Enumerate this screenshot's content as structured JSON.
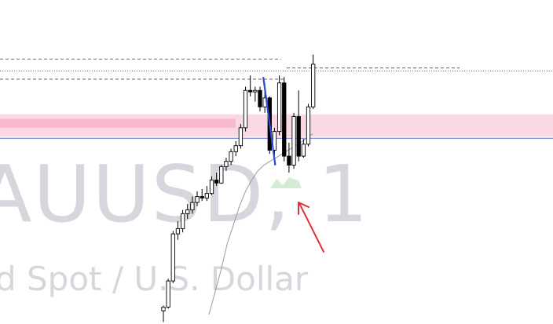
{
  "watermark": {
    "symbol": "AUUSD, 1",
    "description": "d Spot / U.S. Dollar"
  },
  "colors": {
    "background": "#ffffff",
    "watermark": "#d6d7dc",
    "candle_up_fill": "#ffffff",
    "candle_down_fill": "#000000",
    "candle_outline": "#000000",
    "zone_outer": "#fbd9e4",
    "zone_inner": "#f7b9cc",
    "horizontal_line": "#5b6fd6",
    "trend_line": "#2a4fd1",
    "moving_average": "#9a9a9a",
    "arrow": "#e0323c",
    "highlight": "#cfe8cf",
    "level_dashed": "#444444",
    "level_dotted": "#444444"
  },
  "chart_data": {
    "type": "candlestick",
    "title": "",
    "xlabel": "",
    "ylabel": "",
    "grid": false,
    "legend": "none",
    "candles": [
      {
        "o": 5,
        "h": 12,
        "l": -10,
        "c": 10
      },
      {
        "o": 10,
        "h": 48,
        "l": 8,
        "c": 45
      },
      {
        "o": 45,
        "h": 112,
        "l": 42,
        "c": 108
      },
      {
        "o": 108,
        "h": 125,
        "l": 100,
        "c": 115
      },
      {
        "o": 115,
        "h": 140,
        "l": 110,
        "c": 135
      },
      {
        "o": 135,
        "h": 148,
        "l": 128,
        "c": 140
      },
      {
        "o": 140,
        "h": 158,
        "l": 135,
        "c": 150
      },
      {
        "o": 150,
        "h": 165,
        "l": 145,
        "c": 158
      },
      {
        "o": 158,
        "h": 168,
        "l": 152,
        "c": 156
      },
      {
        "o": 156,
        "h": 172,
        "l": 152,
        "c": 162
      },
      {
        "o": 162,
        "h": 185,
        "l": 160,
        "c": 180
      },
      {
        "o": 180,
        "h": 190,
        "l": 172,
        "c": 176
      },
      {
        "o": 176,
        "h": 200,
        "l": 175,
        "c": 198
      },
      {
        "o": 198,
        "h": 210,
        "l": 192,
        "c": 205
      },
      {
        "o": 205,
        "h": 222,
        "l": 200,
        "c": 218
      },
      {
        "o": 218,
        "h": 232,
        "l": 212,
        "c": 226
      },
      {
        "o": 226,
        "h": 255,
        "l": 222,
        "c": 250
      },
      {
        "o": 250,
        "h": 305,
        "l": 245,
        "c": 300
      },
      {
        "o": 300,
        "h": 320,
        "l": 292,
        "c": 298
      },
      {
        "o": 298,
        "h": 305,
        "l": 285,
        "c": 300
      },
      {
        "o": 300,
        "h": 305,
        "l": 272,
        "c": 278
      },
      {
        "o": 278,
        "h": 310,
        "l": 270,
        "c": 290
      },
      {
        "o": 290,
        "h": 292,
        "l": 215,
        "c": 220
      },
      {
        "o": 220,
        "h": 250,
        "l": 200,
        "c": 245
      },
      {
        "o": 245,
        "h": 320,
        "l": 240,
        "c": 310
      },
      {
        "o": 310,
        "h": 318,
        "l": 205,
        "c": 212
      },
      {
        "o": 212,
        "h": 230,
        "l": 190,
        "c": 200
      },
      {
        "o": 200,
        "h": 270,
        "l": 195,
        "c": 265
      },
      {
        "o": 265,
        "h": 300,
        "l": 205,
        "c": 212
      },
      {
        "o": 212,
        "h": 235,
        "l": 210,
        "c": 228
      },
      {
        "o": 228,
        "h": 282,
        "l": 225,
        "c": 278
      },
      {
        "o": 278,
        "h": 348,
        "l": 275,
        "c": 335
      }
    ],
    "ylim": [
      -20,
      400
    ],
    "zone": {
      "low": 238,
      "high": 268,
      "inner_low": 250,
      "inner_high": 262
    },
    "horizontal_level": 236,
    "dashed_levels": [
      342,
      330,
      315
    ],
    "dotted_level": 326,
    "moving_average": [
      0,
      30,
      60,
      95,
      120,
      145,
      165,
      180,
      192,
      200,
      205,
      210,
      215,
      220,
      225,
      230,
      236,
      242
    ],
    "trend_line": {
      "from": {
        "i": 21,
        "v": 318
      },
      "to": {
        "i": 23,
        "v": 200
      }
    }
  }
}
